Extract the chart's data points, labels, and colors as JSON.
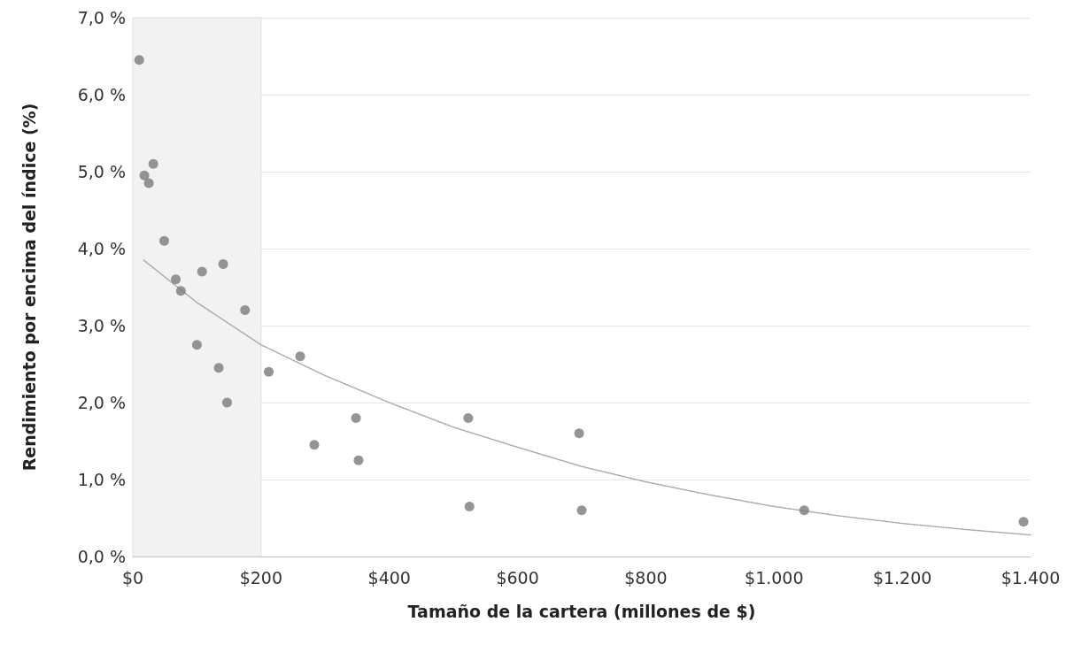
{
  "chart_data": {
    "type": "scatter",
    "xlabel": "Tamaño de la cartera (millones de $)",
    "ylabel": "Rendimiento por encima del índice (%)",
    "xlim": [
      0,
      1400
    ],
    "ylim": [
      0,
      7
    ],
    "xticks": [
      {
        "value": 0,
        "label": "$0"
      },
      {
        "value": 200,
        "label": "$200"
      },
      {
        "value": 400,
        "label": "$400"
      },
      {
        "value": 600,
        "label": "$600"
      },
      {
        "value": 800,
        "label": "$800"
      },
      {
        "value": 1000,
        "label": "$1.000"
      },
      {
        "value": 1200,
        "label": "$1.200"
      },
      {
        "value": 1400,
        "label": "$1.400"
      }
    ],
    "yticks": [
      {
        "value": 0,
        "label": "0,0 %"
      },
      {
        "value": 1,
        "label": "1,0 %"
      },
      {
        "value": 2,
        "label": "2,0 %"
      },
      {
        "value": 3,
        "label": "3,0 %"
      },
      {
        "value": 4,
        "label": "4,0 %"
      },
      {
        "value": 5,
        "label": "5,0 %"
      },
      {
        "value": 6,
        "label": "6,0 %"
      },
      {
        "value": 7,
        "label": "7,0 %"
      }
    ],
    "grid": "y",
    "marker": "circle",
    "bands": [
      {
        "axis": "x",
        "from": 0,
        "to": 200,
        "color": "#f2f2f2"
      }
    ],
    "series": [
      {
        "color": "#7a7a7a",
        "x": [
          10,
          18,
          25,
          32,
          49,
          67,
          75,
          100,
          108,
          134,
          141,
          147,
          175,
          212,
          261,
          283,
          348,
          352,
          523,
          525,
          696,
          700,
          1047,
          1389
        ],
        "values": [
          6.45,
          4.95,
          4.85,
          5.1,
          4.1,
          3.6,
          3.45,
          2.75,
          3.7,
          2.45,
          3.8,
          2.0,
          3.2,
          2.4,
          2.6,
          1.45,
          1.8,
          1.25,
          1.8,
          0.65,
          1.6,
          0.6,
          0.6,
          0.45
        ]
      },
      {
        "type": "line",
        "color": "#a6a6a6",
        "line_style": "dotted",
        "marker": "none",
        "x": [
          17,
          100,
          200,
          300,
          400,
          500,
          600,
          700,
          800,
          900,
          1000,
          1100,
          1200,
          1300,
          1400
        ],
        "values": [
          3.85,
          3.3,
          2.75,
          2.35,
          2.0,
          1.68,
          1.42,
          1.17,
          0.97,
          0.8,
          0.65,
          0.53,
          0.43,
          0.35,
          0.28
        ]
      }
    ]
  }
}
